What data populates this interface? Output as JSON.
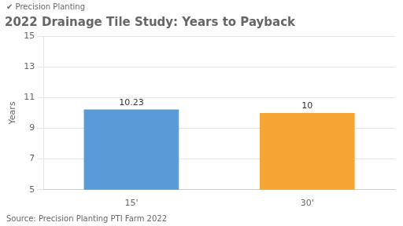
{
  "chart_data": {
    "type": "bar",
    "title": "2022 Drainage Tile Study: Years to Payback",
    "categories": [
      "15'",
      "30'"
    ],
    "values": [
      10.23,
      10
    ],
    "colors": [
      "#5b9bd5",
      "#f4a533"
    ],
    "ylim": [
      5,
      15
    ],
    "yticks": [
      5,
      7,
      9,
      11,
      13,
      15
    ],
    "ylabel": "Years",
    "grid": true,
    "data_labels": true,
    "annotations": [
      "✔ Precision Planting",
      "Source: Precision Planting PTI Farm 2022"
    ]
  }
}
